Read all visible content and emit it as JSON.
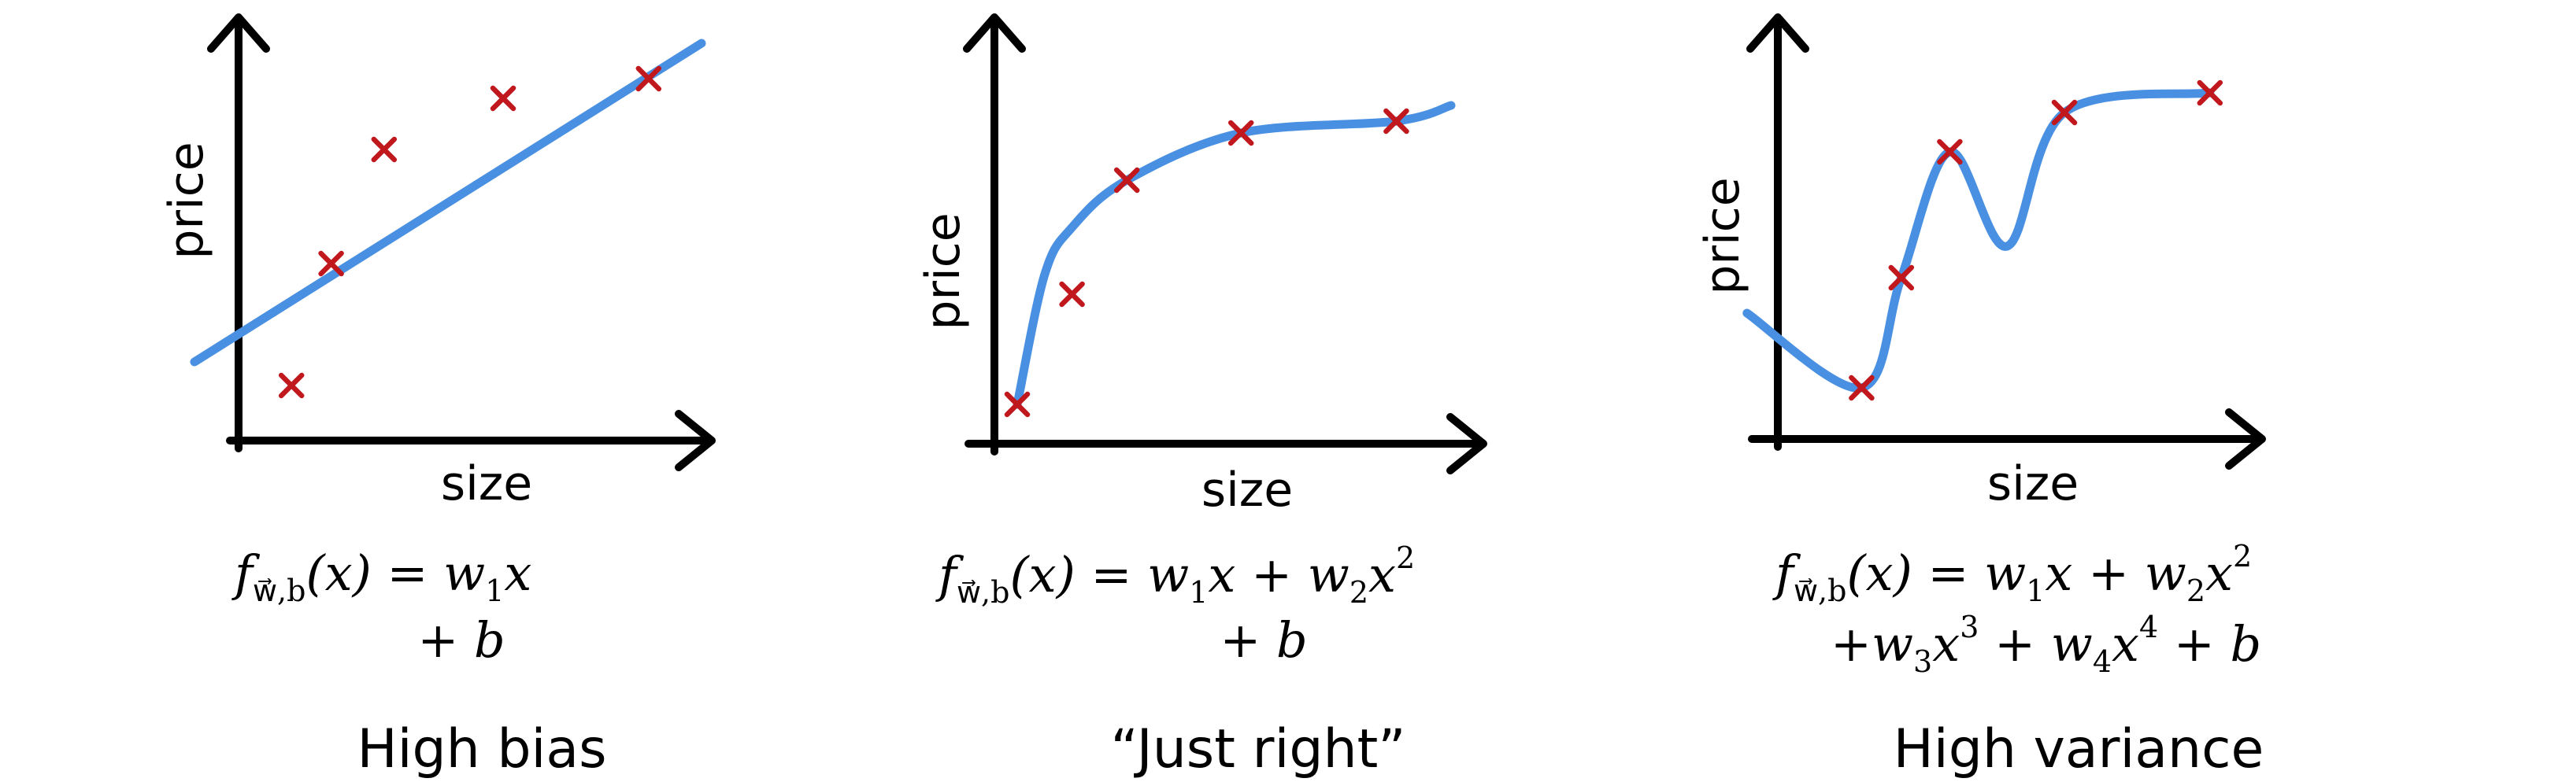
{
  "chart_data": [
    {
      "type": "scatter",
      "xlabel": "size",
      "ylabel": "price",
      "caption": "High bias",
      "fit": "linear",
      "points": [
        {
          "x": 0.12,
          "y": 0.14
        },
        {
          "x": 0.21,
          "y": 0.45
        },
        {
          "x": 0.33,
          "y": 0.74
        },
        {
          "x": 0.6,
          "y": 0.87
        },
        {
          "x": 0.93,
          "y": 0.92
        }
      ],
      "curve": [
        {
          "x": -0.1,
          "y": 0.2
        },
        {
          "x": 1.05,
          "y": 1.01
        }
      ],
      "formula": {
        "f": "f",
        "sub": "w⃗,b",
        "line1_rest": "(x) = w",
        "line1_sub": "1",
        "line1_tail": "x",
        "line2": "+ b"
      }
    },
    {
      "type": "scatter",
      "xlabel": "size",
      "ylabel": "price",
      "caption": "“Just right”",
      "fit": "quadratic",
      "points": [
        {
          "x": 0.05,
          "y": 0.1
        },
        {
          "x": 0.17,
          "y": 0.38
        },
        {
          "x": 0.29,
          "y": 0.67
        },
        {
          "x": 0.54,
          "y": 0.79
        },
        {
          "x": 0.88,
          "y": 0.82
        }
      ],
      "curve": [
        {
          "x": 0.05,
          "y": 0.1
        },
        {
          "x": 0.11,
          "y": 0.43
        },
        {
          "x": 0.17,
          "y": 0.55
        },
        {
          "x": 0.29,
          "y": 0.67
        },
        {
          "x": 0.54,
          "y": 0.79
        },
        {
          "x": 0.88,
          "y": 0.82
        },
        {
          "x": 1.0,
          "y": 0.86
        }
      ],
      "formula": {
        "f": "f",
        "sub": "w⃗,b",
        "line1_rest": "(x) = w",
        "line1_sub": "1",
        "line1_mid": "x + w",
        "line1_sub2": "2",
        "line1_tail": "x",
        "line1_sup": "2",
        "line2": "+ b"
      }
    },
    {
      "type": "scatter",
      "xlabel": "size",
      "ylabel": "price",
      "caption": "High variance",
      "fit": "quartic",
      "points": [
        {
          "x": 0.19,
          "y": 0.13
        },
        {
          "x": 0.28,
          "y": 0.41
        },
        {
          "x": 0.39,
          "y": 0.73
        },
        {
          "x": 0.65,
          "y": 0.83
        },
        {
          "x": 0.98,
          "y": 0.88
        }
      ],
      "curve": [
        {
          "x": -0.07,
          "y": 0.32
        },
        {
          "x": 0.19,
          "y": 0.13
        },
        {
          "x": 0.28,
          "y": 0.41
        },
        {
          "x": 0.39,
          "y": 0.73
        },
        {
          "x": 0.52,
          "y": 0.49
        },
        {
          "x": 0.65,
          "y": 0.83
        },
        {
          "x": 0.98,
          "y": 0.88
        }
      ],
      "formula": {
        "f": "f",
        "sub": "w⃗,b",
        "line1_rest": "(x) = w",
        "line1_sub": "1",
        "line1_mid": "x + w",
        "line1_sub2": "2",
        "line1_tail": "x",
        "line1_sup": "2",
        "line2_a": "+w",
        "line2_sub3": "3",
        "line2_b": "x",
        "line2_sup3": "3",
        "line2_c": " + w",
        "line2_sub4": "4",
        "line2_d": "x",
        "line2_sup4": "4",
        "line2_e": " + b"
      }
    }
  ],
  "colors": {
    "curve": "#4a90e2",
    "points": "#c0181c",
    "axes": "#000000"
  }
}
